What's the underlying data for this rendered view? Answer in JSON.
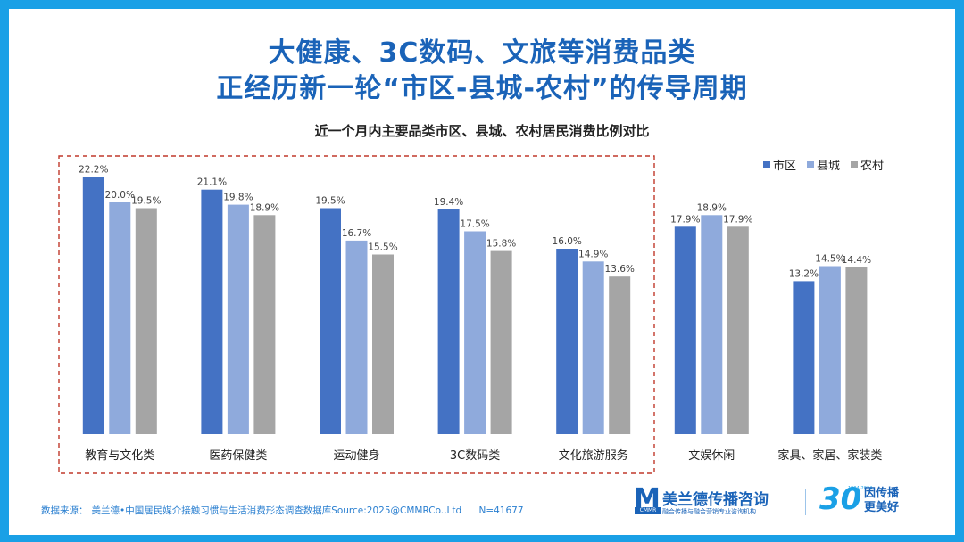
{
  "title_line1": "大健康、3C数码、文旅等消费品类",
  "title_line2": "正经历新一轮“市区-县城-农村”的传导周期",
  "chart_data": {
    "type": "bar",
    "title": "近一个月内主要品类市区、县城、农村居民消费比例对比",
    "categories": [
      "教育与文化类",
      "医药保健类",
      "运动健身",
      "3C数码类",
      "文化旅游服务",
      "文娱休闲",
      "家具、家居、家装类"
    ],
    "series": [
      {
        "name": "市区",
        "color": "#4472c4",
        "values": [
          22.2,
          21.1,
          19.5,
          19.4,
          16.0,
          17.9,
          13.2
        ]
      },
      {
        "name": "县城",
        "color": "#8faadc",
        "values": [
          20.0,
          19.8,
          16.7,
          17.5,
          14.9,
          18.9,
          14.5
        ]
      },
      {
        "name": "农村",
        "color": "#a5a5a5",
        "values": [
          19.5,
          18.9,
          15.5,
          15.8,
          13.6,
          17.9,
          14.4
        ]
      }
    ],
    "value_suffix": "%",
    "ylim": [
      0,
      25
    ],
    "grid": false,
    "legend_position": "top-right",
    "highlight_box": {
      "categories": [
        "教育与文化类",
        "医药保健类",
        "运动健身",
        "3C数码类",
        "文化旅游服务"
      ],
      "color": "#c0392b",
      "style": "dashed"
    }
  },
  "source": {
    "label": "数据来源：",
    "text": "美兰德•中国居民媒介接触习惯与生活消费形态调查数据库Source:2025@CMMRCo.,Ltd",
    "sample": "N=41677"
  },
  "logo": {
    "mark": "M",
    "mark_sub": "CMMR",
    "name": "美兰德传播咨询",
    "tagline": "融合传播与融合营销专业咨询机构",
    "anniversary": "30",
    "years": "1994-2024",
    "slogan_line1": "因传播",
    "slogan_line2": "更美好"
  }
}
